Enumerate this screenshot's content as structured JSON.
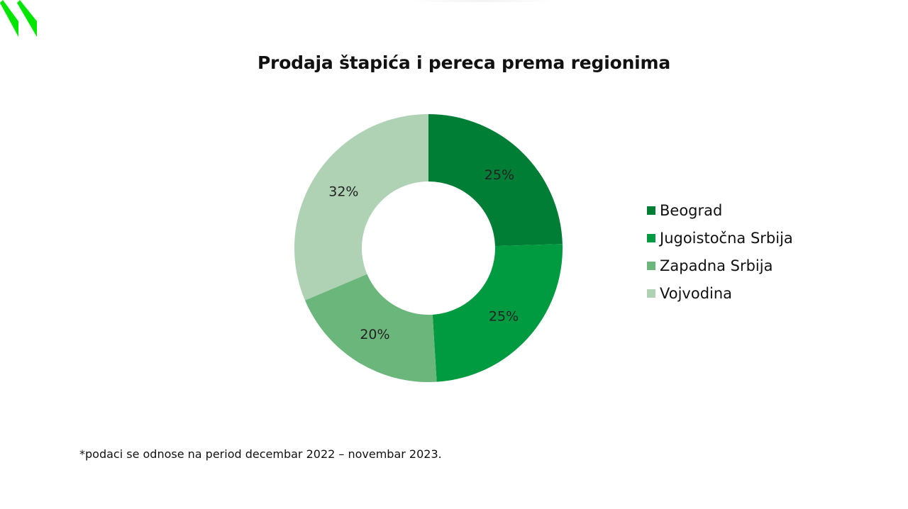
{
  "logo": {
    "icon": "brand-logo-icon",
    "color": "#00e600"
  },
  "chart_data": {
    "type": "pie",
    "title": "Prodaja štapića i pereca prema regionima",
    "categories": [
      "Beograd",
      "Jugoistočna Srbija",
      "Zapadna Srbija",
      "Vojvodina"
    ],
    "values": [
      25,
      25,
      20,
      32
    ],
    "labels": [
      "25%",
      "25%",
      "20%",
      "32%"
    ],
    "colors": [
      "#007e35",
      "#009a40",
      "#6bb77b",
      "#afd2b5"
    ],
    "donut": true,
    "legend_position": "right"
  },
  "footnote": "*podaci se odnose na period decembar 2022 – novembar 2023."
}
